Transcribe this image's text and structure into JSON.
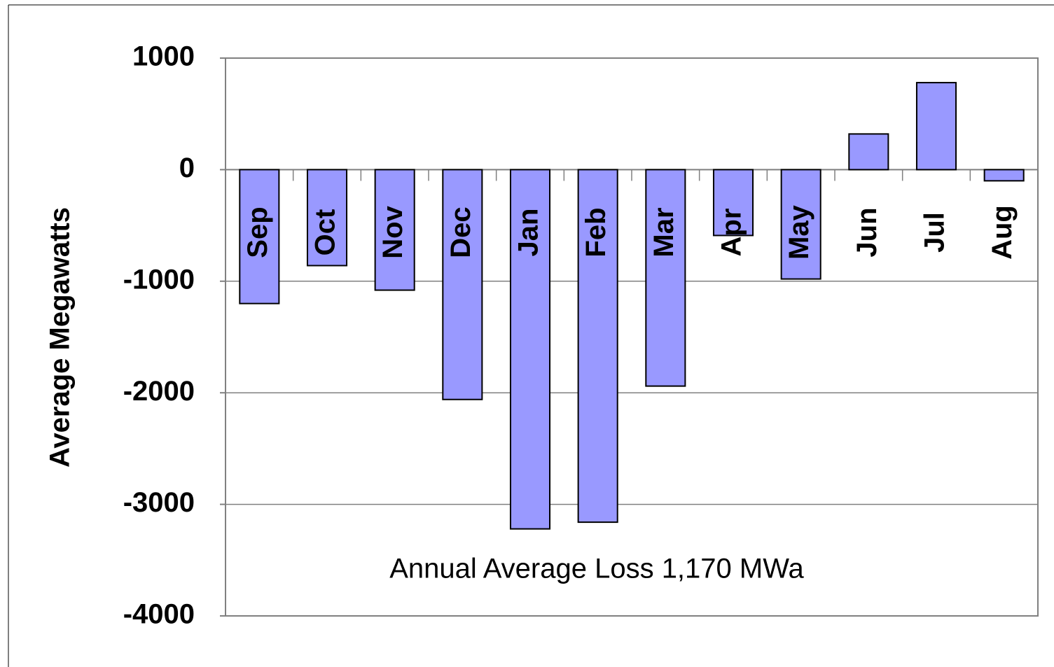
{
  "chart_data": {
    "type": "bar",
    "y_axis_label": "Average Megawatts",
    "annotation": "Annual Average Loss 1,170 MWa",
    "categories": [
      "Sep",
      "Oct",
      "Nov",
      "Dec",
      "Jan",
      "Feb",
      "Mar",
      "Apr",
      "May",
      "Jun",
      "Jul",
      "Aug"
    ],
    "values": [
      -1200,
      -860,
      -1080,
      -2060,
      -3220,
      -3160,
      -1940,
      -590,
      -980,
      320,
      780,
      -100
    ],
    "color": "#9999ff",
    "ylim": [
      -4000,
      1000
    ],
    "yticks": [
      -4000,
      -3000,
      -2000,
      -1000,
      0,
      1000
    ],
    "grid": true
  }
}
